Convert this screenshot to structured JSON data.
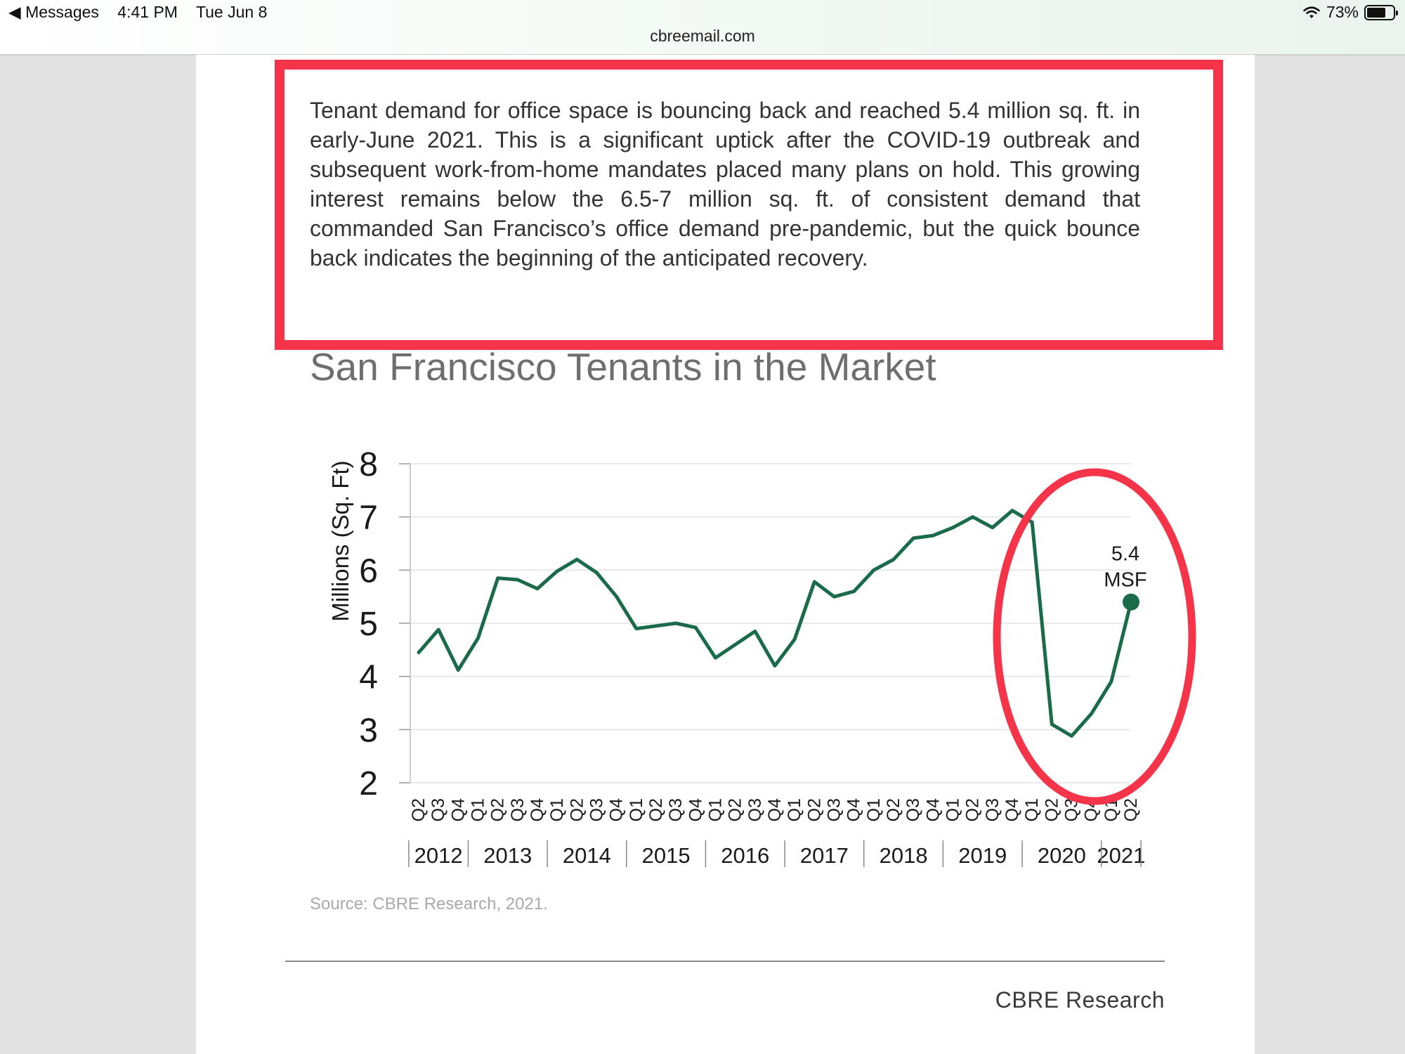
{
  "status_bar": {
    "back_app": "◀ Messages",
    "time": "4:41 PM",
    "date": "Tue Jun 8",
    "battery": "73%",
    "battery_level": 0.73,
    "url": "cbreemail.com"
  },
  "article": {
    "paragraph": "Tenant demand for office space is bouncing back and reached 5.4 million sq. ft. in early-June 2021. This is a significant uptick after the COVID-19 outbreak and subsequent work-from-home mandates placed many plans on hold. This growing interest remains below the 6.5-7 million sq. ft. of consistent demand that commanded San Francisco’s office demand pre-pandemic, but the quick bounce back indicates the beginning of the anticipated recovery.",
    "source": "Source: CBRE Research, 2021.",
    "footer_brand": "CBRE Research"
  },
  "colors": {
    "highlight": "#f5344a",
    "line": "#1a6b4a",
    "title_text": "#6e6e6e",
    "grid": "#e3e3e3"
  },
  "chart_data": {
    "type": "line",
    "title": "San Francisco Tenants in the Market",
    "ylabel": "Millions (Sq. Ft)",
    "xlabel": "",
    "ylim": [
      2,
      8
    ],
    "yticks": [
      2,
      3,
      4,
      5,
      6,
      7,
      8
    ],
    "grid": true,
    "categories": [
      "Q2",
      "Q3",
      "Q4",
      "Q1",
      "Q2",
      "Q3",
      "Q4",
      "Q1",
      "Q2",
      "Q3",
      "Q4",
      "Q1",
      "Q2",
      "Q3",
      "Q4",
      "Q1",
      "Q2",
      "Q3",
      "Q4",
      "Q1",
      "Q2",
      "Q3",
      "Q4",
      "Q1",
      "Q2",
      "Q3",
      "Q4",
      "Q1",
      "Q2",
      "Q3",
      "Q4",
      "Q1",
      "Q2",
      "Q3",
      "Q4",
      "Q1",
      "Q2"
    ],
    "year_groups": [
      {
        "label": "2012",
        "count": 3
      },
      {
        "label": "2013",
        "count": 4
      },
      {
        "label": "2014",
        "count": 4
      },
      {
        "label": "2015",
        "count": 4
      },
      {
        "label": "2016",
        "count": 4
      },
      {
        "label": "2017",
        "count": 4
      },
      {
        "label": "2018",
        "count": 4
      },
      {
        "label": "2019",
        "count": 4
      },
      {
        "label": "2020",
        "count": 4
      },
      {
        "label": "2021",
        "count": 2
      }
    ],
    "series": [
      {
        "values": [
          4.45,
          4.88,
          4.12,
          4.72,
          5.85,
          5.82,
          5.65,
          5.98,
          6.2,
          5.95,
          5.5,
          4.9,
          4.95,
          5.0,
          4.92,
          4.35,
          4.6,
          4.85,
          4.2,
          4.7,
          5.78,
          5.5,
          5.6,
          6.0,
          6.2,
          6.6,
          6.65,
          6.8,
          7.0,
          6.8,
          7.12,
          6.9,
          3.1,
          2.88,
          3.3,
          3.9,
          5.4
        ]
      }
    ],
    "annotation": {
      "point_index": 36,
      "value": 5.4,
      "label_line1": "5.4",
      "label_line2": "MSF"
    }
  }
}
